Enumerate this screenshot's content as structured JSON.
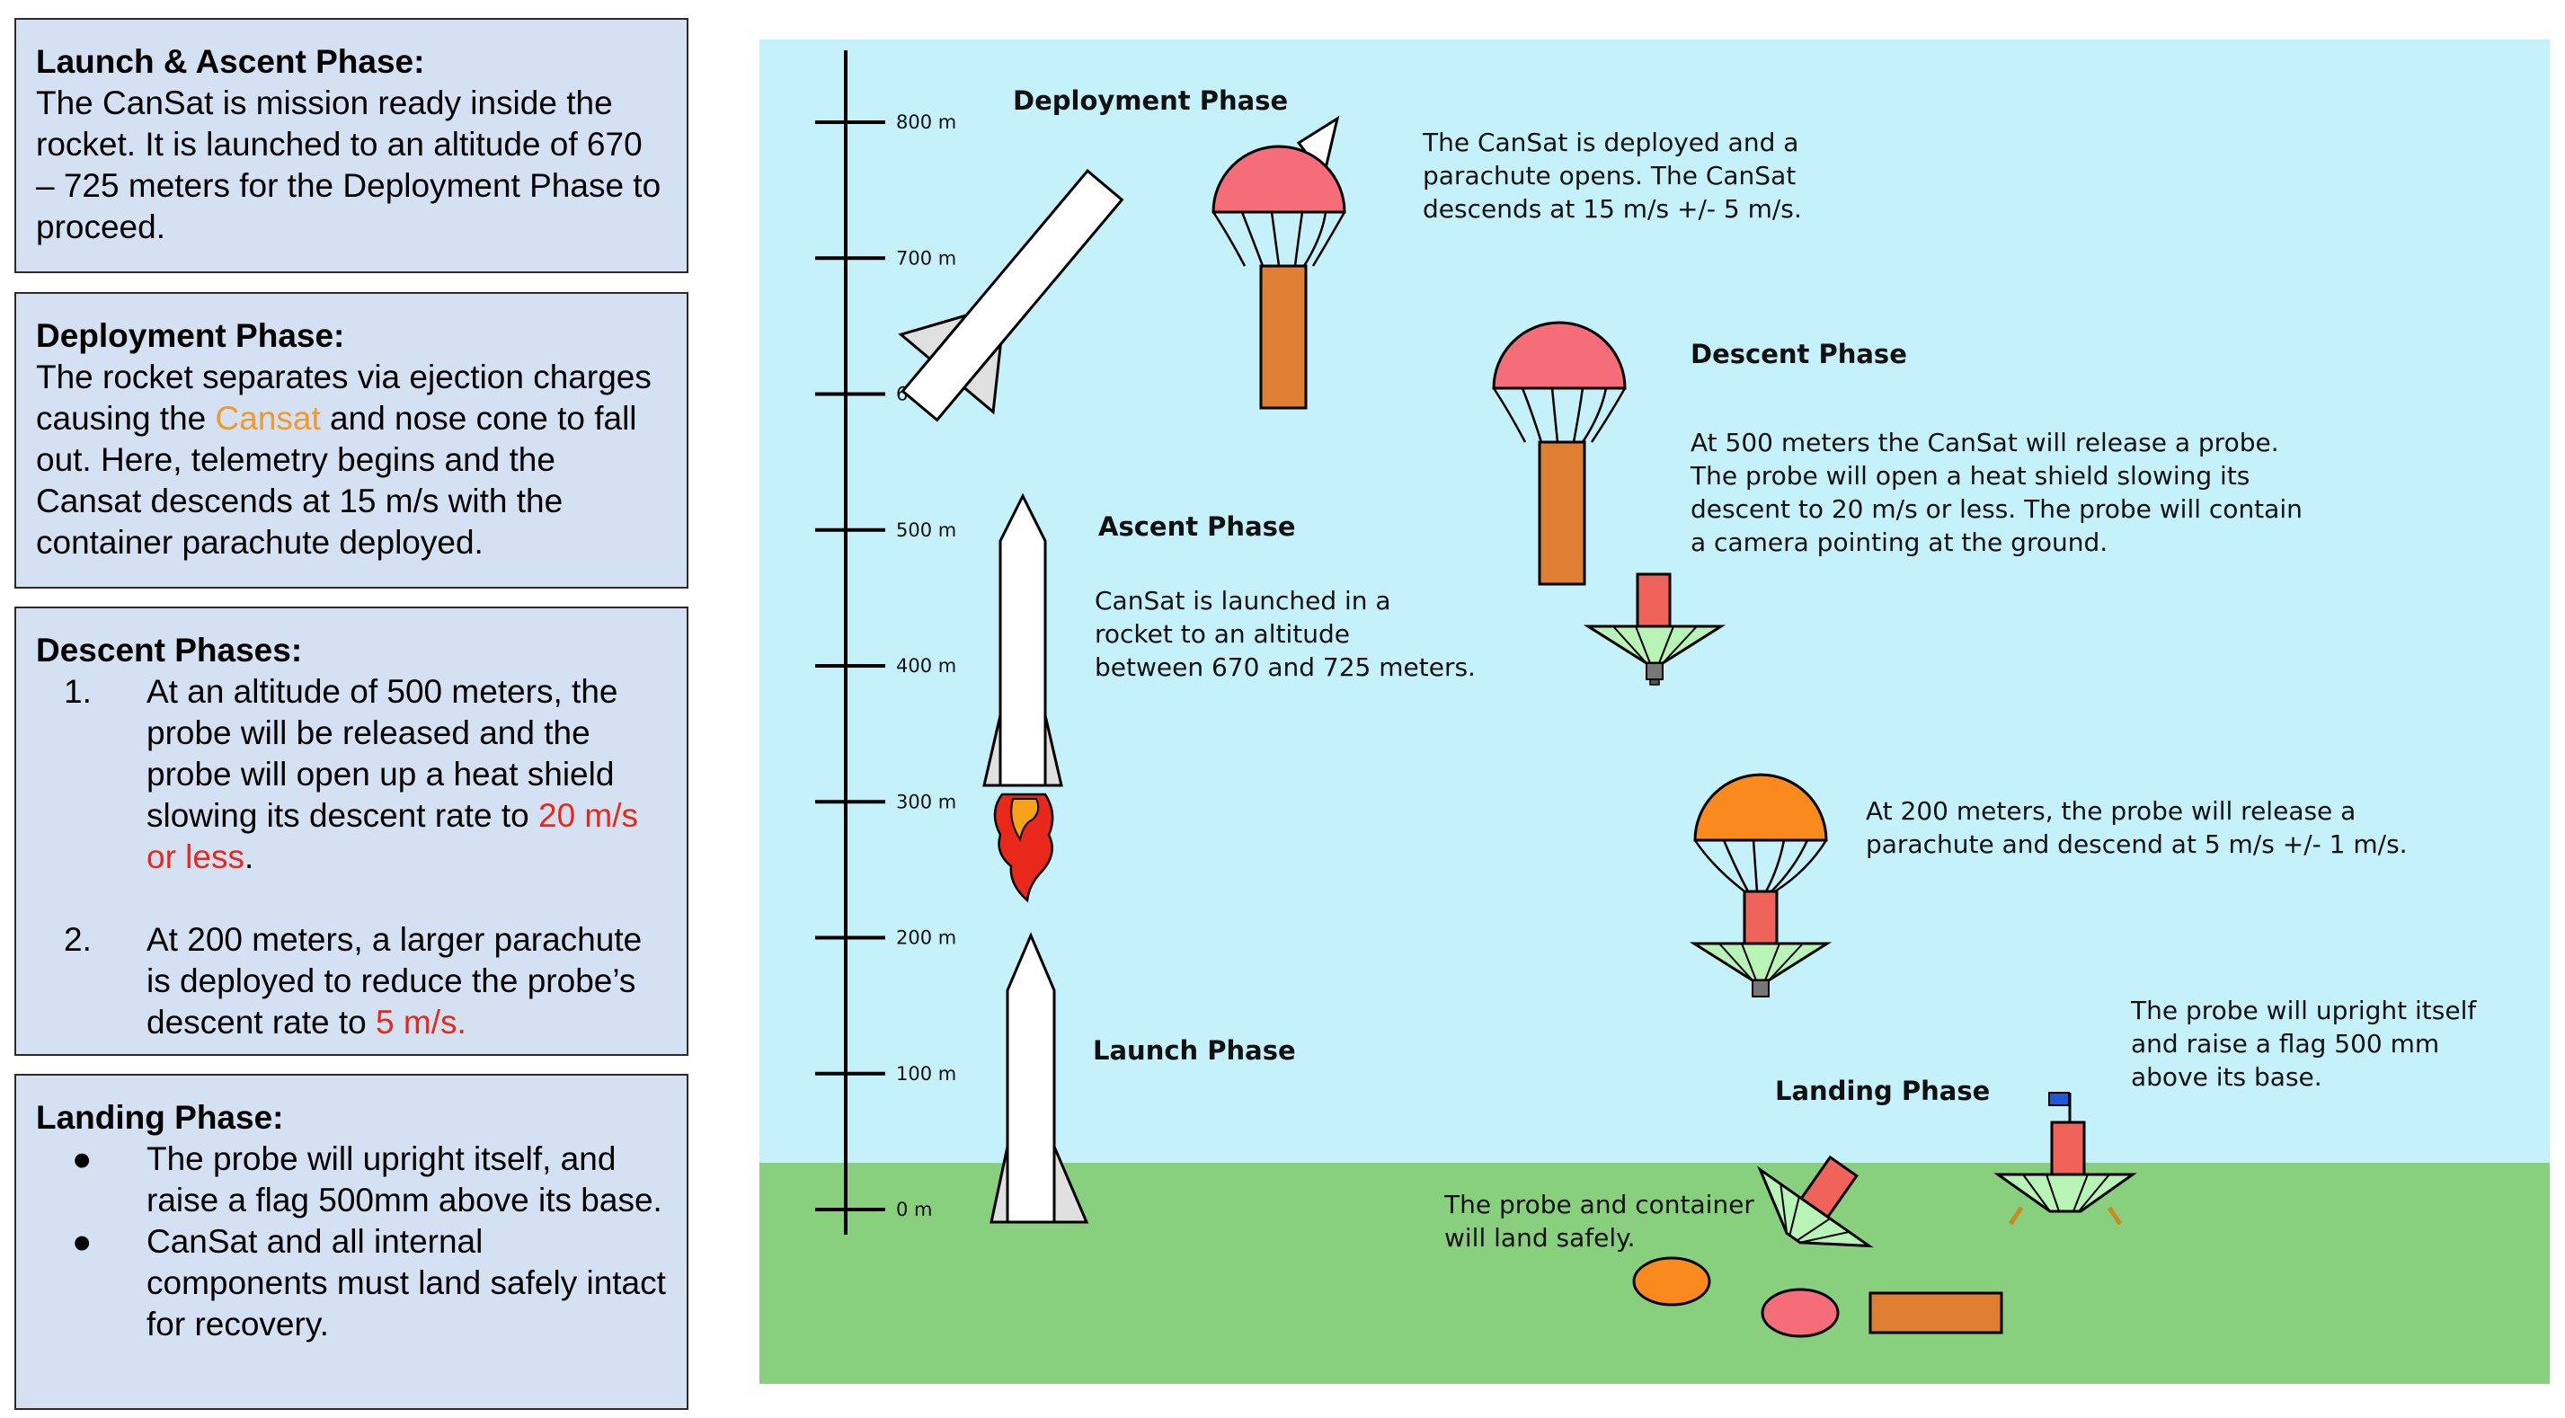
{
  "panels": {
    "launch": {
      "heading": "Launch & Ascent Phase:",
      "body": "The CanSat is mission ready inside the rocket. It is launched to an altitude of 670 – 725 meters for the Deployment Phase to proceed."
    },
    "deployment": {
      "heading": "Deployment Phase:",
      "body_before": "The rocket separates via ejection charges causing the ",
      "body_highlight": "Cansat",
      "body_after": " and nose cone to fall out. Here, telemetry begins and the Cansat descends at 15 m/s with the container parachute deployed.",
      "highlight_color": "#f0992c"
    },
    "descent": {
      "heading": "Descent Phases:",
      "items": [
        {
          "num": "1.",
          "text": "At an altitude of 500 meters, the probe will be released and the probe will open up a heat shield slowing its descent rate to ",
          "highlight": "20 m/s or less",
          "after": "."
        },
        {
          "num": "2.",
          "text": "At 200 meters, a larger parachute is deployed to reduce the probe’s descent rate to ",
          "highlight": "5 m/s.",
          "after": ""
        }
      ],
      "highlight_color": "#e8281a"
    },
    "landing": {
      "heading": "Landing Phase:",
      "bullets": [
        "The probe will upright itself, and raise a flag 500mm above its base.",
        "CanSat and all internal components must land safely intact for recovery."
      ]
    }
  },
  "diagram": {
    "altitude_ticks": [
      "800 m",
      "700 m",
      "600 m",
      "500 m",
      "400 m",
      "300 m",
      "200 m",
      "100 m",
      "0 m"
    ],
    "phases": {
      "deployment": {
        "title": "Deployment Phase",
        "lines": [
          "The CanSat is deployed and a",
          "parachute opens. The CanSat",
          "descends at 15 m/s +/- 5 m/s."
        ]
      },
      "descent": {
        "title": "Descent Phase",
        "lines": [
          "At 500 meters the CanSat will release a probe.",
          "The probe will open a heat shield slowing its",
          "descent to 20 m/s or less. The probe will contain",
          "a camera pointing at the ground."
        ]
      },
      "ascent": {
        "title": "Ascent Phase",
        "lines": [
          "CanSat is launched in a",
          "rocket to an altitude",
          "between 670 and 725 meters."
        ]
      },
      "parachute_200": {
        "lines": [
          "At 200 meters, the probe will release a",
          "parachute and descend at 5 m/s +/- 1 m/s."
        ]
      },
      "launch": {
        "title": "Launch Phase"
      },
      "landing": {
        "title": "Landing Phase",
        "upright_lines": [
          "The probe will upright itself",
          "and raise a flag 500 mm",
          "above its base."
        ],
        "safe_lines": [
          "The probe and container",
          "will land safely."
        ]
      }
    },
    "colors": {
      "sky": "#c5f1fb",
      "ground": "#89d07e",
      "parachute_pink": "#f46d78",
      "parachute_orange": "#fb8a1e",
      "container": "#e07f34",
      "probe": "#f0635b",
      "heat_shield": "#b8f4b6",
      "flag": "#1f57d6"
    }
  }
}
